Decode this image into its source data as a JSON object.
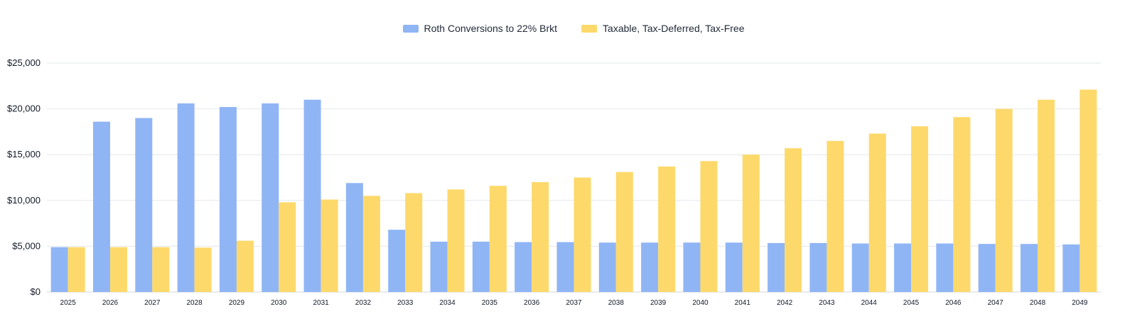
{
  "chart_data": {
    "type": "bar",
    "title": "",
    "xlabel": "",
    "ylabel": "",
    "ylim": [
      0,
      25000
    ],
    "yticks": [
      0,
      5000,
      10000,
      15000,
      20000,
      25000
    ],
    "ytick_labels": [
      "$0",
      "$5,000",
      "$10,000",
      "$15,000",
      "$20,000",
      "$25,000"
    ],
    "grid": true,
    "legend_position": "top-center",
    "categories": [
      "2025",
      "2026",
      "2027",
      "2028",
      "2029",
      "2030",
      "2031",
      "2032",
      "2033",
      "2034",
      "2035",
      "2036",
      "2037",
      "2038",
      "2039",
      "2040",
      "2041",
      "2042",
      "2043",
      "2044",
      "2045",
      "2046",
      "2047",
      "2048",
      "2049"
    ],
    "series": [
      {
        "name": "Roth Conversions to 22% Brkt",
        "color": "#8fb5f5",
        "values": [
          4900,
          18600,
          19000,
          20600,
          20200,
          20600,
          21000,
          11900,
          6800,
          5500,
          5500,
          5450,
          5450,
          5400,
          5400,
          5400,
          5400,
          5350,
          5350,
          5300,
          5300,
          5300,
          5250,
          5250,
          5200
        ]
      },
      {
        "name": "Taxable, Tax-Deferred, Tax-Free",
        "color": "#fdd96b",
        "values": [
          4900,
          4900,
          4900,
          4850,
          5600,
          9800,
          10100,
          10500,
          10800,
          11200,
          11600,
          12000,
          12500,
          13100,
          13700,
          14300,
          15000,
          15700,
          16500,
          17300,
          18100,
          19100,
          20000,
          21000,
          22100
        ]
      }
    ]
  }
}
